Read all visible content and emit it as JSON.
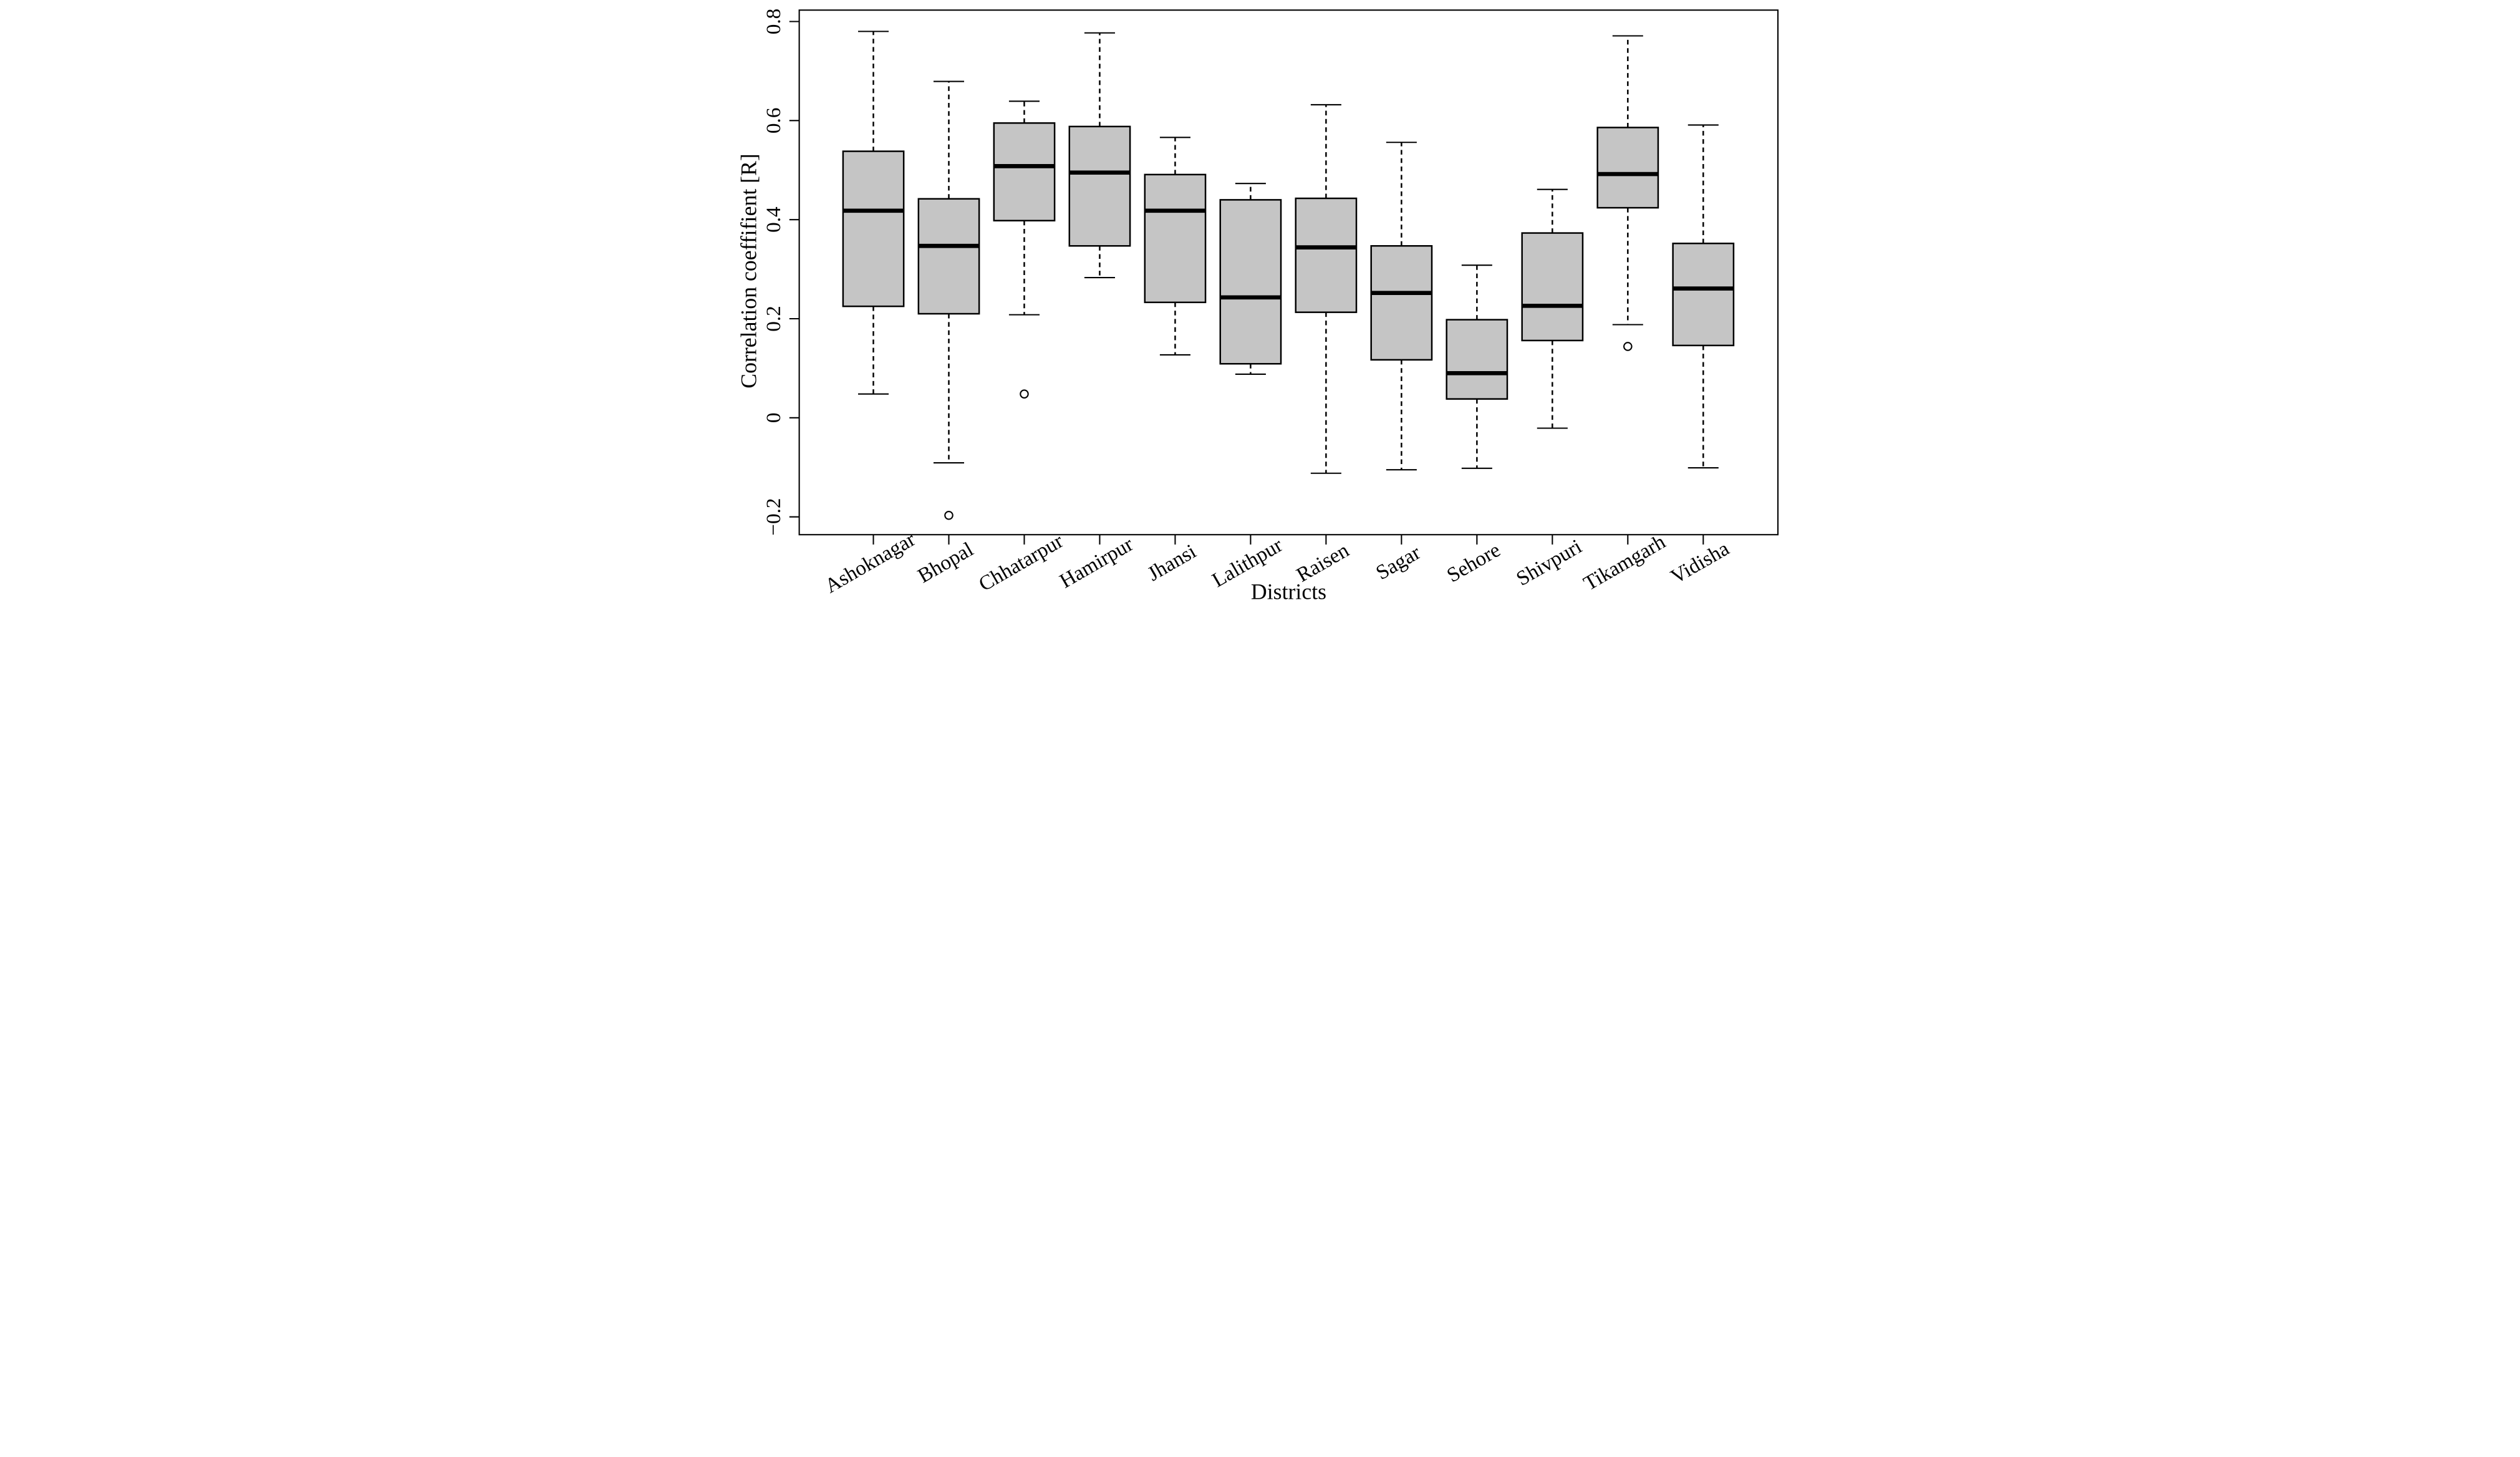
{
  "figure": {
    "background": "#ffffff",
    "ink_color": "#000000",
    "box_fill_color": "#c5c5c5"
  },
  "chart_data": {
    "type": "boxplot",
    "title": "",
    "xlabel": "Districts",
    "ylabel": "Correlation coeffifient [R]",
    "ylim": [
      -0.236,
      0.823
    ],
    "y_ticks": [
      0.8,
      0.6,
      0.4,
      0.2,
      0,
      -0.2
    ],
    "y_tick_labels": [
      "0.8",
      "0.6",
      "0.4",
      "0.2",
      "0",
      "−0.2"
    ],
    "grid": false,
    "legend": "none",
    "whisker_style": "dashed",
    "categories": [
      "Ashoknagar",
      "Bhopal",
      "Chhatarpur",
      "Hamirpur",
      "Jhansi",
      "Lalithpur",
      "Raisen",
      "Sagar",
      "Sehore",
      "Shivpuri",
      "Tikamgarh",
      "Vidisha"
    ],
    "series": [
      {
        "name": "Ashoknagar",
        "whisker_low": 0.048,
        "q1": 0.225,
        "median": 0.418,
        "q3": 0.538,
        "whisker_high": 0.78,
        "outliers": []
      },
      {
        "name": "Bhopal",
        "whisker_low": -0.091,
        "q1": 0.21,
        "median": 0.347,
        "q3": 0.442,
        "whisker_high": 0.679,
        "outliers": [
          -0.197
        ]
      },
      {
        "name": "Chhatarpur",
        "whisker_low": 0.208,
        "q1": 0.398,
        "median": 0.508,
        "q3": 0.595,
        "whisker_high": 0.639,
        "outliers": [
          0.048
        ]
      },
      {
        "name": "Hamirpur",
        "whisker_low": 0.283,
        "q1": 0.347,
        "median": 0.495,
        "q3": 0.588,
        "whisker_high": 0.777,
        "outliers": []
      },
      {
        "name": "Jhansi",
        "whisker_low": 0.127,
        "q1": 0.233,
        "median": 0.418,
        "q3": 0.491,
        "whisker_high": 0.566,
        "outliers": []
      },
      {
        "name": "Lalithpur",
        "whisker_low": 0.088,
        "q1": 0.109,
        "median": 0.243,
        "q3": 0.44,
        "whisker_high": 0.473,
        "outliers": []
      },
      {
        "name": "Raisen",
        "whisker_low": -0.112,
        "q1": 0.213,
        "median": 0.344,
        "q3": 0.443,
        "whisker_high": 0.632,
        "outliers": []
      },
      {
        "name": "Sagar",
        "whisker_low": -0.105,
        "q1": 0.117,
        "median": 0.252,
        "q3": 0.347,
        "whisker_high": 0.556,
        "outliers": []
      },
      {
        "name": "Sehore",
        "whisker_low": -0.102,
        "q1": 0.038,
        "median": 0.09,
        "q3": 0.198,
        "whisker_high": 0.308,
        "outliers": []
      },
      {
        "name": "Shivpuri",
        "whisker_low": -0.021,
        "q1": 0.156,
        "median": 0.226,
        "q3": 0.373,
        "whisker_high": 0.461,
        "outliers": []
      },
      {
        "name": "Tikamgarh",
        "whisker_low": 0.188,
        "q1": 0.424,
        "median": 0.492,
        "q3": 0.586,
        "whisker_high": 0.771,
        "outliers": [
          0.144
        ]
      },
      {
        "name": "Vidisha",
        "whisker_low": -0.101,
        "q1": 0.146,
        "median": 0.261,
        "q3": 0.352,
        "whisker_high": 0.591,
        "outliers": []
      }
    ]
  }
}
